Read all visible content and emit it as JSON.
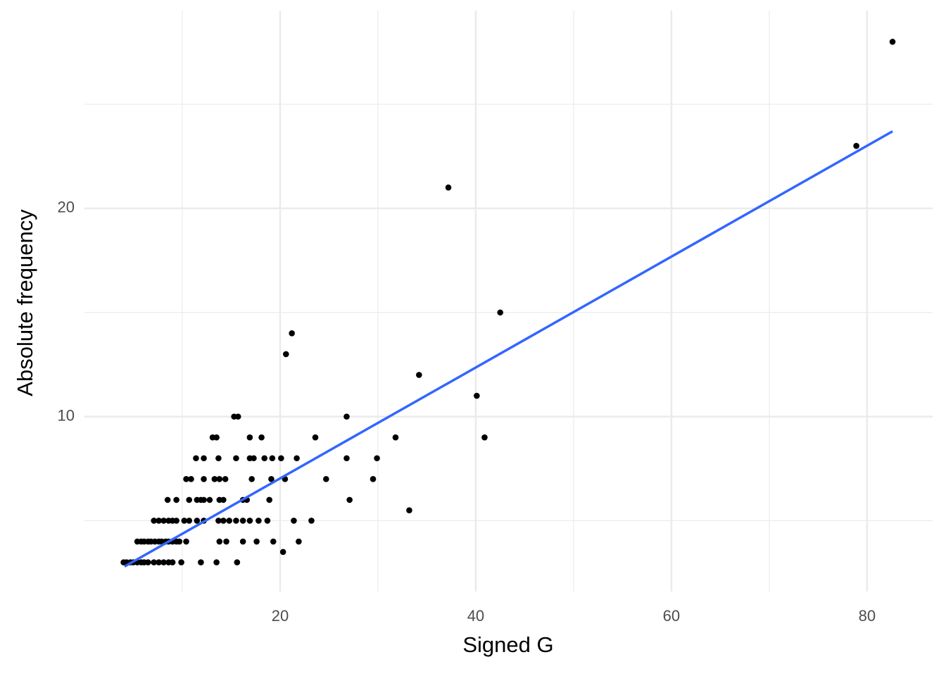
{
  "chart_data": {
    "type": "scatter",
    "xlabel": "Signed G",
    "ylabel": "Absolute frequency",
    "xlim": [
      0,
      86.7
    ],
    "ylim": [
      1.6,
      29.5
    ],
    "xticks": [
      20,
      40,
      60,
      80
    ],
    "yticks": [
      10,
      20
    ],
    "xminor": [
      10,
      30,
      50,
      70
    ],
    "yminor": [
      5,
      15,
      25
    ],
    "grid": true,
    "color": "#000000",
    "x": [
      4.0,
      4.3,
      4.7,
      5.0,
      5.4,
      5.8,
      6.1,
      6.5,
      7.1,
      7.6,
      8.1,
      8.6,
      9.0,
      9.9,
      11.9,
      13.5,
      15.6,
      20.3,
      5.4,
      5.8,
      6.1,
      6.5,
      6.8,
      7.2,
      7.6,
      7.9,
      8.3,
      8.6,
      9.0,
      9.4,
      9.7,
      10.4,
      13.8,
      14.5,
      16.2,
      17.6,
      19.3,
      21.9,
      7.1,
      7.6,
      8.1,
      8.6,
      9.0,
      9.4,
      10.2,
      10.7,
      11.5,
      12.2,
      13.7,
      14.2,
      14.8,
      15.5,
      16.2,
      16.9,
      17.8,
      18.7,
      21.4,
      23.2,
      33.2,
      8.5,
      9.4,
      10.7,
      11.5,
      11.9,
      12.2,
      12.8,
      13.8,
      14.2,
      16.2,
      16.6,
      18.9,
      27.1,
      10.4,
      10.9,
      12.2,
      13.3,
      13.8,
      14.4,
      17.1,
      19.1,
      20.5,
      24.7,
      29.5,
      11.4,
      12.2,
      13.7,
      15.5,
      16.9,
      17.3,
      18.4,
      19.2,
      20.1,
      21.7,
      26.8,
      29.9,
      13.1,
      13.5,
      16.9,
      18.1,
      23.6,
      31.8,
      40.9,
      15.3,
      15.7,
      26.8,
      40.1,
      34.2,
      20.6,
      21.2,
      42.5,
      37.2,
      78.9,
      82.6
    ],
    "y": [
      3,
      3,
      3,
      3,
      3,
      3,
      3,
      3,
      3,
      3,
      3,
      3,
      3,
      3,
      3,
      3,
      3,
      3.5,
      4,
      4,
      4,
      4,
      4,
      4,
      4,
      4,
      4,
      4,
      4,
      4,
      4,
      4,
      4,
      4,
      4,
      4,
      4,
      4,
      5,
      5,
      5,
      5,
      5,
      5,
      5,
      5,
      5,
      5,
      5,
      5,
      5,
      5,
      5,
      5,
      5,
      5,
      5,
      5,
      5.5,
      6,
      6,
      6,
      6,
      6,
      6,
      6,
      6,
      6,
      6,
      6,
      6,
      6,
      7,
      7,
      7,
      7,
      7,
      7,
      7,
      7,
      7,
      7,
      7,
      8,
      8,
      8,
      8,
      8,
      8,
      8,
      8,
      8,
      8,
      8,
      8,
      9,
      9,
      9,
      9,
      9,
      9,
      9,
      10,
      10,
      10,
      11,
      12,
      13,
      14,
      15,
      21,
      23,
      28
    ],
    "fit": {
      "color": "#3366ff",
      "x": [
        4.1,
        82.6
      ],
      "y": [
        2.8,
        23.7
      ]
    }
  }
}
